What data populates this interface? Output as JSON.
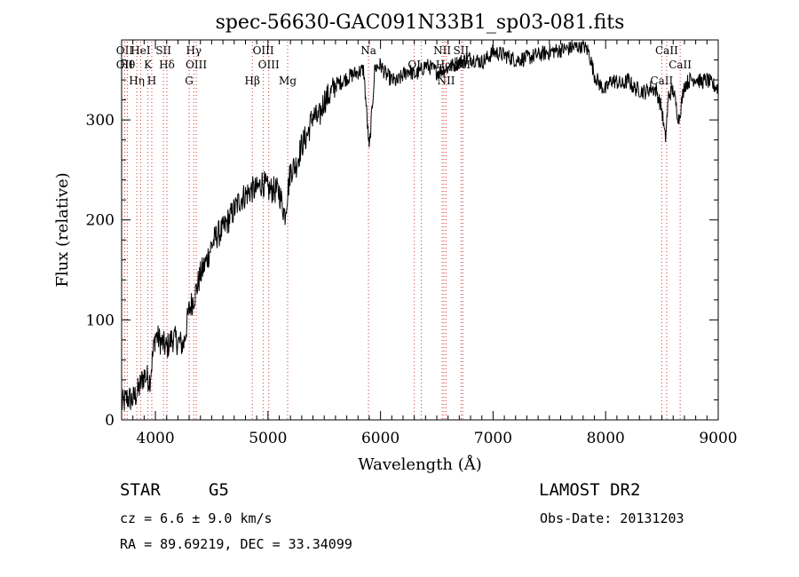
{
  "chart_data": {
    "type": "line",
    "title": "spec-56630-GAC091N33B1_sp03-081.fits",
    "xlabel": "Wavelength (Å)",
    "ylabel": "Flux (relative)",
    "xlim": [
      3700,
      9000
    ],
    "ylim": [
      0,
      380
    ],
    "x_ticks": [
      4000,
      5000,
      6000,
      7000,
      8000,
      9000
    ],
    "y_ticks": [
      0,
      100,
      200,
      300
    ],
    "x_tick_labels": [
      "4000",
      "5000",
      "6000",
      "7000",
      "8000",
      "9000"
    ],
    "y_tick_labels": [
      "0",
      "100",
      "200",
      "300"
    ],
    "grid": false,
    "series": [
      {
        "x": [
          3700,
          3750,
          3800,
          3850,
          3900,
          3950,
          4000,
          4050,
          4100,
          4150,
          4200,
          4250,
          4300,
          4350,
          4400,
          4450,
          4500,
          4550,
          4600,
          4650,
          4700,
          4750,
          4800,
          4850,
          4900,
          4950,
          5000,
          5050,
          5100,
          5150,
          5200,
          5250,
          5300,
          5350,
          5400,
          5450,
          5500,
          5550,
          5600,
          5650,
          5700,
          5750,
          5800,
          5850,
          5900,
          5950,
          6000,
          6050,
          6100,
          6150,
          6200,
          6250,
          6300,
          6350,
          6400,
          6450,
          6500,
          6550,
          6600,
          6650,
          6700,
          6750,
          6800,
          6850,
          6900,
          6950,
          7000,
          7100,
          7200,
          7300,
          7400,
          7500,
          7600,
          7700,
          7800,
          7850,
          7900,
          7950,
          8000,
          8050,
          8100,
          8150,
          8200,
          8250,
          8300,
          8350,
          8400,
          8450,
          8500,
          8530,
          8560,
          8600,
          8650,
          8700,
          8750,
          8800,
          8850,
          8900,
          8950,
          9000
        ],
        "y": [
          15,
          22,
          20,
          30,
          45,
          40,
          85,
          78,
          72,
          82,
          78,
          75,
          110,
          125,
          145,
          158,
          175,
          185,
          190,
          200,
          210,
          220,
          225,
          230,
          230,
          238,
          230,
          230,
          228,
          205,
          250,
          255,
          275,
          285,
          305,
          300,
          320,
          325,
          335,
          338,
          342,
          345,
          348,
          350,
          270,
          352,
          355,
          345,
          340,
          338,
          345,
          350,
          345,
          348,
          355,
          352,
          348,
          350,
          352,
          355,
          358,
          360,
          362,
          360,
          358,
          362,
          368,
          365,
          360,
          362,
          365,
          368,
          370,
          372,
          375,
          368,
          345,
          335,
          330,
          340,
          338,
          335,
          340,
          332,
          330,
          328,
          332,
          330,
          310,
          280,
          325,
          330,
          300,
          335,
          340,
          342,
          338,
          340,
          335,
          332
        ]
      }
    ],
    "line_markers": [
      {
        "wave": 3727,
        "labels": [
          "OII",
          "OII"
        ]
      },
      {
        "wave": 3750,
        "labels": [
          "Hθ"
        ]
      },
      {
        "wave": 3835,
        "labels": [
          "Hη"
        ]
      },
      {
        "wave": 3869,
        "labels": [
          "HeI"
        ]
      },
      {
        "wave": 3934,
        "labels": [
          "K"
        ]
      },
      {
        "wave": 3968,
        "labels": [
          "H"
        ]
      },
      {
        "wave": 4072,
        "labels": [
          "SII"
        ]
      },
      {
        "wave": 4102,
        "labels": [
          "Hδ"
        ]
      },
      {
        "wave": 4300,
        "labels": [
          "G"
        ]
      },
      {
        "wave": 4341,
        "labels": [
          "Hγ"
        ]
      },
      {
        "wave": 4363,
        "labels": [
          "OIII"
        ]
      },
      {
        "wave": 4861,
        "labels": [
          "Hβ"
        ]
      },
      {
        "wave": 4959,
        "labels": [
          "OIII"
        ]
      },
      {
        "wave": 5007,
        "labels": [
          "OIII"
        ]
      },
      {
        "wave": 5175,
        "labels": [
          "Mg"
        ]
      },
      {
        "wave": 5893,
        "labels": [
          "Na"
        ]
      },
      {
        "wave": 6300,
        "labels": [
          "OI"
        ]
      },
      {
        "wave": 6363,
        "labels": []
      },
      {
        "wave": 6548,
        "labels": [
          "NII"
        ]
      },
      {
        "wave": 6563,
        "labels": [
          "Hα"
        ]
      },
      {
        "wave": 6583,
        "labels": [
          "NII"
        ]
      },
      {
        "wave": 6716,
        "labels": [
          "SII"
        ]
      },
      {
        "wave": 6731,
        "labels": [
          "SII"
        ]
      },
      {
        "wave": 8498,
        "labels": [
          "CaII"
        ]
      },
      {
        "wave": 8542,
        "labels": [
          "CaII"
        ]
      },
      {
        "wave": 8662,
        "labels": [
          "CaII"
        ]
      }
    ]
  },
  "info": {
    "class": "STAR",
    "subclass": "G5",
    "survey": "LAMOST DR2",
    "cz": "cz = 6.6 ± 9.0 km/s",
    "obs_date": "Obs-Date: 20131203",
    "coords": "RA =  89.69219, DEC =  33.34099"
  }
}
